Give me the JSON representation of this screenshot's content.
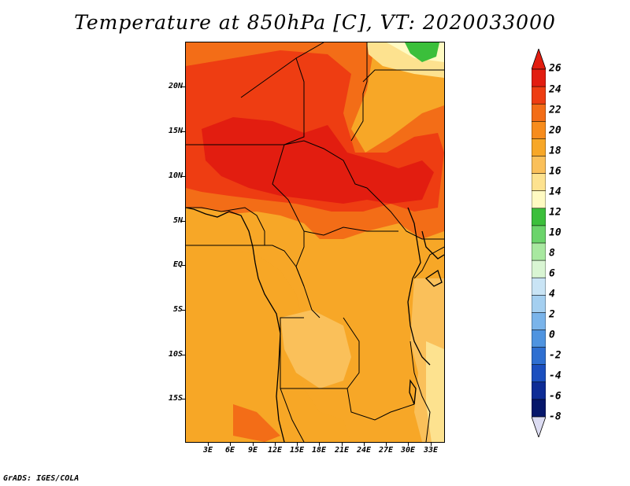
{
  "title": "Temperature at 850hPa [C], VT: 2020033000",
  "credit": "GrADS: IGES/COLA",
  "lat_labels": [
    "20N",
    "15N",
    "10N",
    "5N",
    "EQ",
    "5S",
    "10S",
    "15S"
  ],
  "lon_labels": [
    "3E",
    "6E",
    "9E",
    "12E",
    "15E",
    "18E",
    "21E",
    "24E",
    "27E",
    "30E",
    "33E"
  ],
  "colorbar": {
    "labels": [
      "26",
      "24",
      "22",
      "20",
      "18",
      "16",
      "14",
      "12",
      "10",
      "8",
      "6",
      "4",
      "2",
      "0",
      "-2",
      "-4",
      "-6",
      "-8"
    ],
    "colors": [
      "#e21d10",
      "#ee3d12",
      "#f36d17",
      "#f78c1c",
      "#f7a727",
      "#fac05a",
      "#fde28f",
      "#fffac2",
      "#3bbf3b",
      "#6bd46b",
      "#a8e8a0",
      "#d9f5d3",
      "#c9e4f5",
      "#a4cff0",
      "#7ab4ea",
      "#4f94e0",
      "#2e6fd1",
      "#1b4fbf",
      "#0e2c96",
      "#06176b"
    ],
    "over_color": "#e21d10",
    "under_color": "#dcdcf2"
  },
  "legend_icon": "triangle-arrow-icon"
}
